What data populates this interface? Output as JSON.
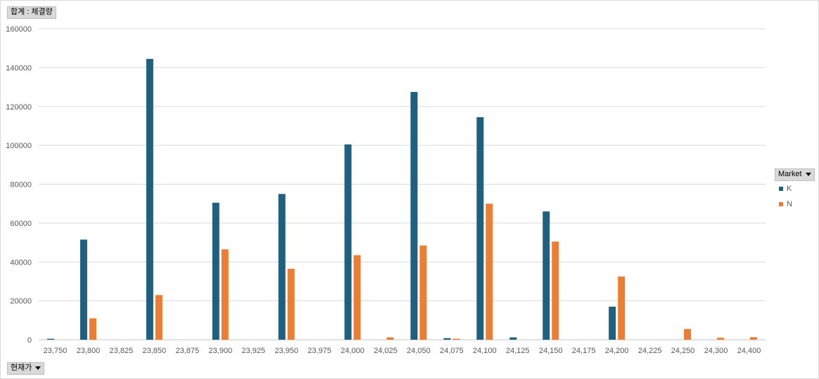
{
  "field_buttons": {
    "values_field": "합계 : 체결량",
    "rows_field": "현재가",
    "legend_field": "Market"
  },
  "colors": {
    "K": "#1f5f7f",
    "N": "#ed7d31",
    "grid": "#d9d9d9",
    "axis_text": "#595959"
  },
  "chart_data": {
    "type": "bar",
    "title": "",
    "xlabel": "",
    "ylabel": "",
    "ylim": [
      0,
      160000
    ],
    "yticks": [
      0,
      20000,
      40000,
      60000,
      80000,
      100000,
      120000,
      140000,
      160000
    ],
    "grid": true,
    "legend_position": "right",
    "categories": [
      "23,750",
      "23,800",
      "23,825",
      "23,850",
      "23,875",
      "23,900",
      "23,925",
      "23,950",
      "23,975",
      "24,000",
      "24,025",
      "24,050",
      "24,075",
      "24,100",
      "24,125",
      "24,150",
      "24,175",
      "24,200",
      "24,225",
      "24,250",
      "24,300",
      "24,400"
    ],
    "series": [
      {
        "name": "K",
        "values": [
          500,
          51500,
          0,
          144500,
          0,
          70500,
          0,
          75000,
          0,
          100500,
          0,
          127500,
          800,
          114500,
          1200,
          66000,
          0,
          17000,
          0,
          0,
          0,
          0
        ]
      },
      {
        "name": "N",
        "values": [
          0,
          11000,
          0,
          23000,
          0,
          46500,
          0,
          36500,
          0,
          43500,
          1200,
          48500,
          500,
          70000,
          0,
          50500,
          0,
          32500,
          0,
          5500,
          1000,
          1300
        ]
      }
    ]
  }
}
